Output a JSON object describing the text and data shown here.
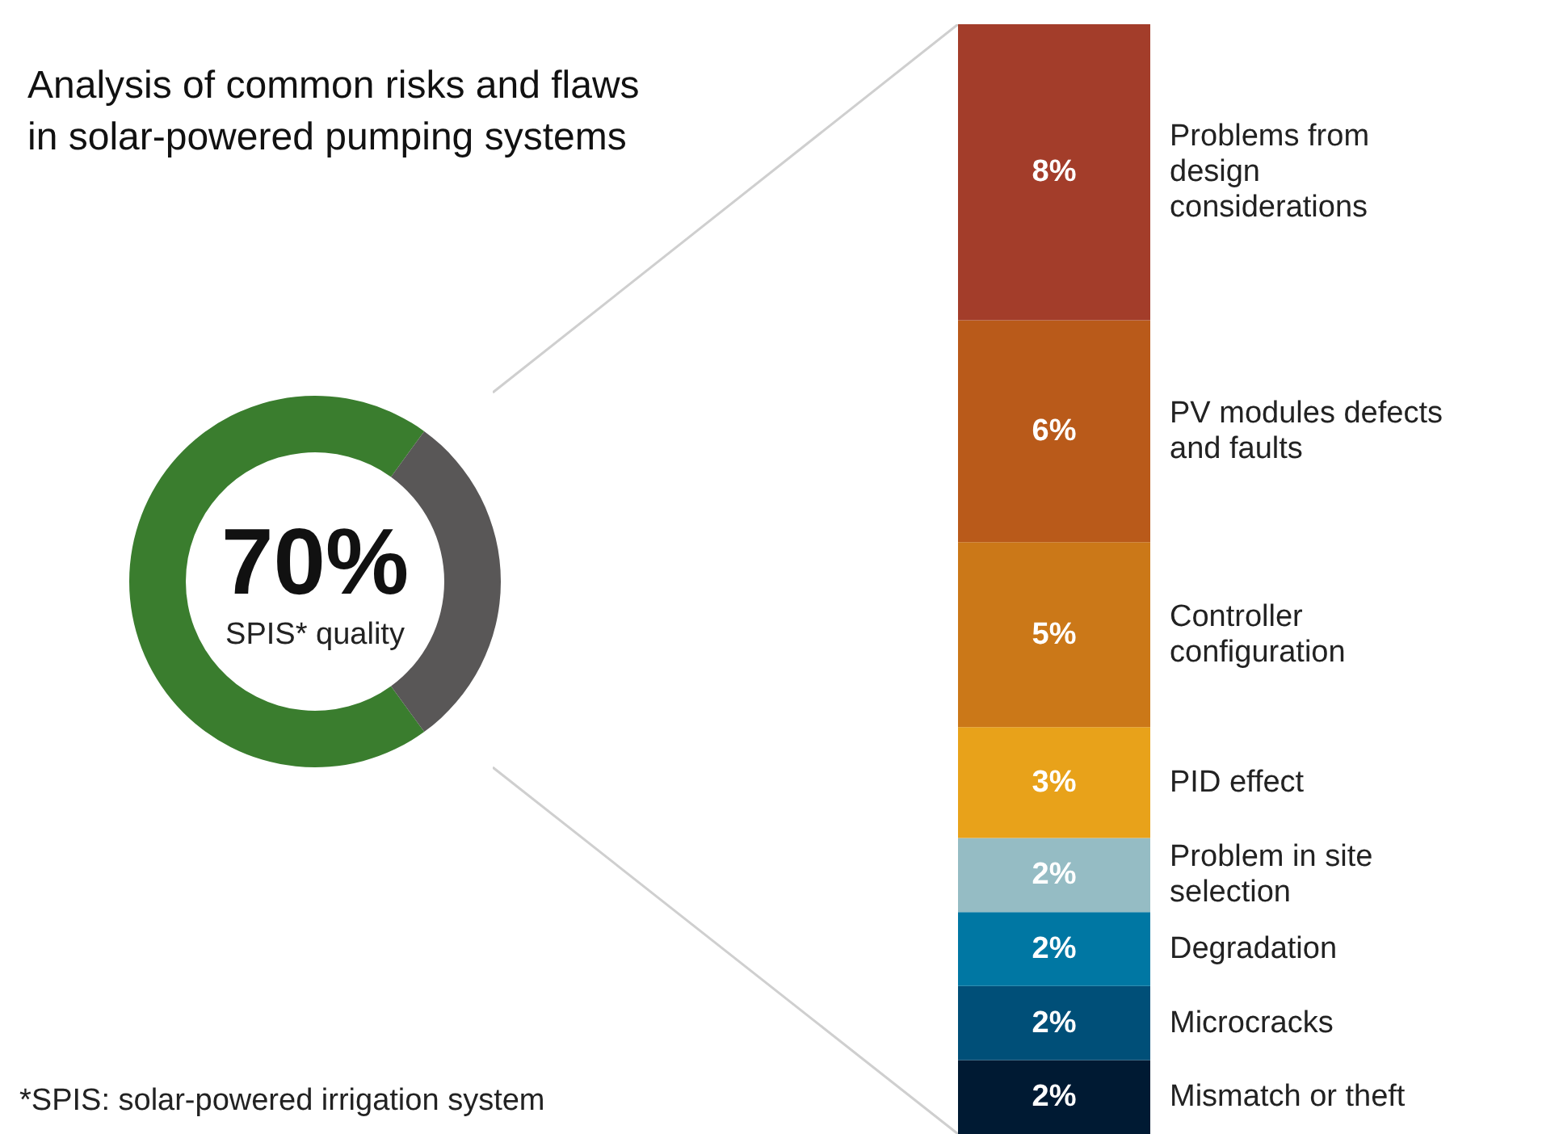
{
  "chart_data": [
    {
      "type": "donut",
      "title": "Analysis of common risks and flaws in solar-powered pumping systems",
      "categories": [
        "SPIS* quality",
        null
      ],
      "values": [
        70,
        30
      ],
      "colors": [
        "#3a7d2e",
        "#595757"
      ],
      "value_labels": [
        "70%",
        null
      ],
      "legend": false,
      "annotations": [
        "*SPIS: solar-powered irrigation system"
      ]
    },
    {
      "type": "bar",
      "stacked": true,
      "categories": [
        null
      ],
      "legend": false,
      "series": [
        {
          "name": "Mismatch or theft",
          "color": "#001a33",
          "values": [
            2
          ],
          "value_labels": [
            "2%"
          ]
        },
        {
          "name": "Microcracks",
          "color": "#004f78",
          "values": [
            2
          ],
          "value_labels": [
            "2%"
          ]
        },
        {
          "name": "Degradation",
          "color": "#0077a3",
          "values": [
            2
          ],
          "value_labels": [
            "2%"
          ]
        },
        {
          "name": "Problem in site selection",
          "color": "#95bcc4",
          "values": [
            2
          ],
          "value_labels": [
            "2%"
          ]
        },
        {
          "name": "PID effect",
          "color": "#e8a21a",
          "values": [
            3
          ],
          "value_labels": [
            "3%"
          ]
        },
        {
          "name": "Controller configuration",
          "color": "#cb7818",
          "values": [
            5
          ],
          "value_labels": [
            "5%"
          ]
        },
        {
          "name": "PV modules defects and faults",
          "color": "#b95a1a",
          "values": [
            6
          ],
          "value_labels": [
            "6%"
          ]
        },
        {
          "name": "Problems from design considerations",
          "color": "#a33d2a",
          "values": [
            8
          ],
          "value_labels": [
            "8%"
          ]
        }
      ]
    }
  ]
}
